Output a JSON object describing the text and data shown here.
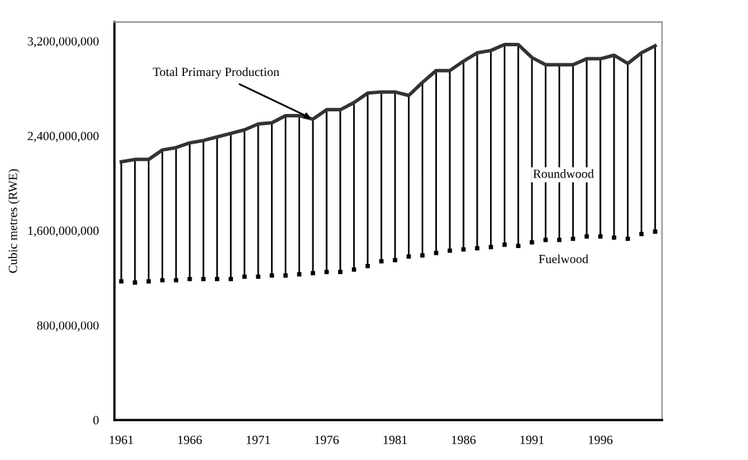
{
  "chart_data": {
    "type": "bar",
    "ylabel": "Cubic metres (RWE)",
    "x": [
      1961,
      1962,
      1963,
      1964,
      1965,
      1966,
      1967,
      1968,
      1969,
      1970,
      1971,
      1972,
      1973,
      1974,
      1975,
      1976,
      1977,
      1978,
      1979,
      1980,
      1981,
      1982,
      1983,
      1984,
      1985,
      1986,
      1987,
      1988,
      1989,
      1990,
      1991,
      1992,
      1993,
      1994,
      1995,
      1996,
      1997,
      1998,
      1999,
      2000
    ],
    "series": [
      {
        "type": "scatter",
        "color": "#000000",
        "marker": "square",
        "values": [
          1170000000,
          1160000000,
          1170000000,
          1180000000,
          1180000000,
          1190000000,
          1190000000,
          1190000000,
          1190000000,
          1210000000,
          1210000000,
          1220000000,
          1220000000,
          1230000000,
          1240000000,
          1250000000,
          1250000000,
          1270000000,
          1300000000,
          1340000000,
          1350000000,
          1380000000,
          1390000000,
          1410000000,
          1430000000,
          1440000000,
          1450000000,
          1460000000,
          1480000000,
          1470000000,
          1500000000,
          1520000000,
          1520000000,
          1530000000,
          1550000000,
          1550000000,
          1540000000,
          1530000000,
          1570000000,
          1590000000
        ]
      },
      {
        "color": "#000000",
        "base": [
          1170000000,
          1160000000,
          1170000000,
          1180000000,
          1180000000,
          1190000000,
          1190000000,
          1190000000,
          1190000000,
          1210000000,
          1210000000,
          1220000000,
          1220000000,
          1230000000,
          1240000000,
          1250000000,
          1250000000,
          1270000000,
          1300000000,
          1340000000,
          1350000000,
          1380000000,
          1390000000,
          1410000000,
          1430000000,
          1440000000,
          1450000000,
          1460000000,
          1480000000,
          1470000000,
          1500000000,
          1520000000,
          1520000000,
          1530000000,
          1550000000,
          1550000000,
          1540000000,
          1530000000,
          1570000000,
          1590000000
        ],
        "values": [
          1010000000,
          1040000000,
          1030000000,
          1100000000,
          1120000000,
          1150000000,
          1170000000,
          1200000000,
          1230000000,
          1240000000,
          1290000000,
          1290000000,
          1350000000,
          1340000000,
          1300000000,
          1370000000,
          1370000000,
          1410000000,
          1460000000,
          1430000000,
          1420000000,
          1360000000,
          1460000000,
          1540000000,
          1520000000,
          1590000000,
          1650000000,
          1660000000,
          1690000000,
          1700000000,
          1560000000,
          1480000000,
          1480000000,
          1470000000,
          1500000000,
          1500000000,
          1540000000,
          1480000000,
          1530000000,
          1570000000
        ]
      },
      {
        "type": "line",
        "color": "#333333",
        "values": [
          2180000000,
          2200000000,
          2200000000,
          2280000000,
          2300000000,
          2340000000,
          2360000000,
          2390000000,
          2420000000,
          2450000000,
          2500000000,
          2510000000,
          2570000000,
          2570000000,
          2540000000,
          2620000000,
          2620000000,
          2680000000,
          2760000000,
          2770000000,
          2770000000,
          2740000000,
          2850000000,
          2950000000,
          2950000000,
          3030000000,
          3100000000,
          3120000000,
          3170000000,
          3170000000,
          3060000000,
          3000000000,
          3000000000,
          3000000000,
          3050000000,
          3050000000,
          3080000000,
          3010000000,
          3100000000,
          3160000000
        ]
      }
    ],
    "annotations": [
      {
        "text": "Total Primary Production",
        "x": 1975,
        "y": 2540000000
      },
      "Roundwood",
      "Fuelwood"
    ],
    "xlim": [
      1960.5,
      2000.5
    ],
    "xticks": [
      1961,
      1966,
      1971,
      1976,
      1981,
      1986,
      1991,
      1996
    ],
    "ylim": [
      0,
      3360000000
    ],
    "yticks": [
      0,
      {
        "value": 800000000,
        "label": "800,000,000"
      },
      {
        "value": 1600000000,
        "label": "1,600,000,000"
      },
      {
        "value": 2400000000,
        "label": "2,400,000,000"
      },
      {
        "value": 3200000000,
        "label": "3,200,000,000"
      }
    ],
    "grid": false
  }
}
